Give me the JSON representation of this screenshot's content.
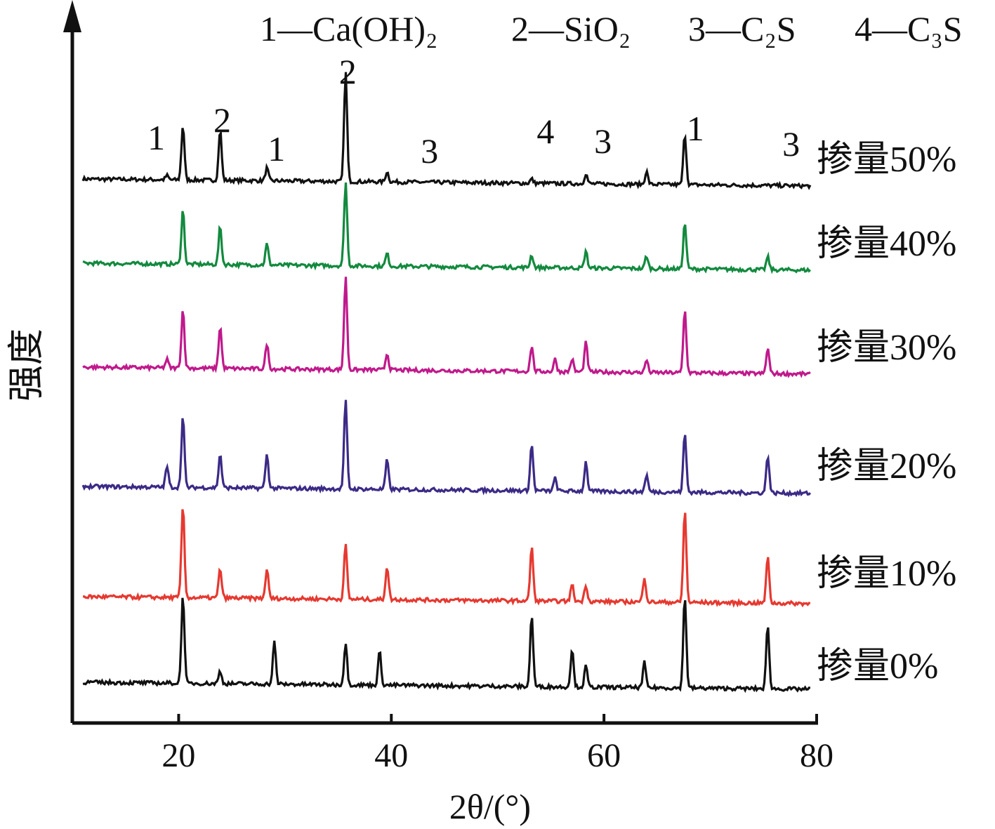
{
  "chart_data": {
    "type": "line",
    "xlabel": "2θ/(°)",
    "ylabel": "强度",
    "xlim": [
      10,
      80
    ],
    "x_ticks": [
      "20",
      "40",
      "60",
      "80"
    ],
    "legend_header": [
      "1—Ca(OH)₂",
      "2—SiO₂",
      "3—C₂S",
      "4—C₃S"
    ],
    "peak_markers": [
      {
        "label": "1",
        "x": 17.9
      },
      {
        "label": "2",
        "x": 24.1
      },
      {
        "label": "1",
        "x": 29.2
      },
      {
        "label": "2",
        "x": 35.9
      },
      {
        "label": "3",
        "x": 43.6
      },
      {
        "label": "4",
        "x": 54.5
      },
      {
        "label": "3",
        "x": 59.9
      },
      {
        "label": "1",
        "x": 68.6
      },
      {
        "label": "3",
        "x": 77.6
      }
    ],
    "peak_positions": [
      18.9,
      20.4,
      23.9,
      28.3,
      29.0,
      35.6,
      35.9,
      39.6,
      53.2,
      55.4,
      57.0,
      58.3,
      63.8,
      67.5,
      75.4
    ],
    "series": [
      {
        "name": "掺量50%",
        "color": "#111111",
        "peaks": [
          [
            18.9,
            0.5
          ],
          [
            20.4,
            6.5
          ],
          [
            23.9,
            6
          ],
          [
            28.3,
            1.5
          ],
          [
            35.7,
            13
          ],
          [
            39.6,
            1.2
          ],
          [
            53.2,
            0.5
          ],
          [
            58.3,
            1.2
          ],
          [
            64.0,
            1.5
          ],
          [
            67.6,
            6
          ]
        ]
      },
      {
        "name": "掺量40%",
        "color": "#128a3e",
        "peaks": [
          [
            20.4,
            6.5
          ],
          [
            23.9,
            4.5
          ],
          [
            28.3,
            2.5
          ],
          [
            35.7,
            10
          ],
          [
            39.6,
            1.5
          ],
          [
            53.2,
            1.5
          ],
          [
            58.3,
            2
          ],
          [
            64.0,
            1.5
          ],
          [
            67.6,
            5.5
          ],
          [
            75.4,
            1.5
          ]
        ]
      },
      {
        "name": "掺量30%",
        "color": "#c0198c",
        "peaks": [
          [
            18.9,
            1
          ],
          [
            20.4,
            7
          ],
          [
            23.9,
            5
          ],
          [
            28.3,
            3
          ],
          [
            35.7,
            11
          ],
          [
            39.6,
            2
          ],
          [
            53.2,
            3
          ],
          [
            55.4,
            1.5
          ],
          [
            57.0,
            1.5
          ],
          [
            58.3,
            3.5
          ],
          [
            64.0,
            1.5
          ],
          [
            67.6,
            7.5
          ],
          [
            75.4,
            3
          ]
        ]
      },
      {
        "name": "掺量20%",
        "color": "#3c2a86",
        "peaks": [
          [
            18.9,
            2.5
          ],
          [
            20.4,
            8.5
          ],
          [
            23.9,
            4
          ],
          [
            28.3,
            4
          ],
          [
            35.7,
            10.5
          ],
          [
            39.6,
            3.5
          ],
          [
            53.2,
            5.5
          ],
          [
            55.4,
            1.5
          ],
          [
            58.3,
            3.5
          ],
          [
            64.0,
            2
          ],
          [
            67.6,
            7
          ],
          [
            75.4,
            4.5
          ]
        ]
      },
      {
        "name": "掺量10%",
        "color": "#e63930",
        "peaks": [
          [
            20.4,
            11
          ],
          [
            23.9,
            3.5
          ],
          [
            28.3,
            3.5
          ],
          [
            35.7,
            6.5
          ],
          [
            39.6,
            4
          ],
          [
            53.2,
            6.5
          ],
          [
            57.0,
            2
          ],
          [
            58.3,
            2
          ],
          [
            63.8,
            3
          ],
          [
            67.6,
            11
          ],
          [
            75.4,
            5.5
          ]
        ]
      },
      {
        "name": "掺量0%",
        "color": "#111111",
        "peaks": [
          [
            20.4,
            10.5
          ],
          [
            23.9,
            1.5
          ],
          [
            29.0,
            5
          ],
          [
            35.7,
            5
          ],
          [
            38.9,
            4
          ],
          [
            53.2,
            8.5
          ],
          [
            57.0,
            4.5
          ],
          [
            58.3,
            2.5
          ],
          [
            63.8,
            3
          ],
          [
            67.6,
            11
          ],
          [
            75.4,
            7.5
          ]
        ]
      }
    ]
  }
}
